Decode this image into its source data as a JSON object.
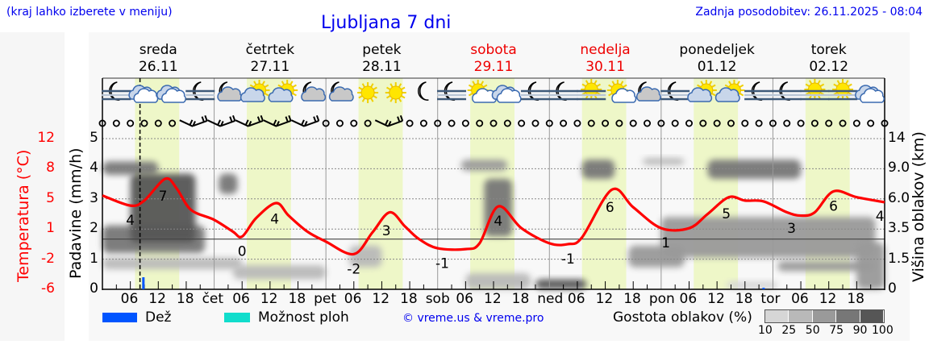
{
  "header": {
    "note": "(kraj lahko izberete v meniju)",
    "title": "Ljubljana 7 dni",
    "updated": "Zadnja posodobitev: 26.11.2025 - 08:04"
  },
  "days": [
    {
      "name": "sreda",
      "date": "26.11",
      "weekend": false
    },
    {
      "name": "četrtek",
      "date": "27.11",
      "weekend": false
    },
    {
      "name": "petek",
      "date": "28.11",
      "weekend": false
    },
    {
      "name": "sobota",
      "date": "29.11",
      "weekend": true
    },
    {
      "name": "nedelja",
      "date": "30.11",
      "weekend": true
    },
    {
      "name": "ponedeljek",
      "date": "01.12",
      "weekend": false
    },
    {
      "name": "torek",
      "date": "02.12",
      "weekend": false
    }
  ],
  "colors": {
    "title": "#0000ee",
    "weekend": "#ee0000",
    "temperature": "#ff0000",
    "rain": "#0055ff",
    "showers": "#11ddcc",
    "daylight": "#eef7c8"
  },
  "legend": {
    "rain": "Dež",
    "showers": "Možnost ploh",
    "copyright": "© vreme.us & vreme.pro",
    "cloud_density": "Gostota oblakov (%)",
    "density_levels": [
      "10",
      "25",
      "50",
      "75",
      "90",
      "100"
    ],
    "density_colors": [
      "#d6d6d6",
      "#b9b9b9",
      "#9a9a9a",
      "#777777",
      "#565656"
    ]
  },
  "chart_data": {
    "type": "meteogram",
    "now_hour": 8.07,
    "x_ticks": {
      "hours": [
        "06",
        "12",
        "18"
      ],
      "day_abbr": [
        "čet",
        "pet",
        "sob",
        "ned",
        "pon",
        "tor"
      ]
    },
    "left_axis": {
      "label": "Padavine (mm/h)",
      "ticks": [
        "0",
        "1",
        "2",
        "3",
        "4",
        "5"
      ],
      "ylim": [
        0,
        5
      ]
    },
    "temp_axis": {
      "label": "Temperatura (°C)",
      "ticks": [
        "-6",
        "-2",
        "1",
        "5",
        "8",
        "12"
      ],
      "ylim": [
        -6,
        12
      ]
    },
    "right_axis": {
      "label": "Višina oblakov (km)",
      "ticks": [
        "0",
        "1.5",
        "3.5",
        "6.0",
        "9.0",
        "14"
      ]
    },
    "daylight_hours": [
      7,
      16.5
    ],
    "temperature": [
      [
        0,
        5.2
      ],
      [
        6,
        4.0
      ],
      [
        9,
        4.6
      ],
      [
        13.5,
        7.2
      ],
      [
        16,
        6.0
      ],
      [
        19,
        3.5
      ],
      [
        24,
        2.3
      ],
      [
        28,
        0.9
      ],
      [
        30,
        0.3
      ],
      [
        33,
        2.5
      ],
      [
        37.3,
        4.3
      ],
      [
        40,
        2.8
      ],
      [
        44,
        0.9
      ],
      [
        48,
        -0.3
      ],
      [
        54,
        -1.8
      ],
      [
        58,
        0.8
      ],
      [
        61.7,
        3.2
      ],
      [
        65,
        1.5
      ],
      [
        68,
        0.0
      ],
      [
        72,
        -1.1
      ],
      [
        78,
        -1.2
      ],
      [
        81,
        -0.5
      ],
      [
        85,
        3.9
      ],
      [
        90,
        1.3
      ],
      [
        96,
        -0.5
      ],
      [
        100,
        -0.6
      ],
      [
        103,
        0.2
      ],
      [
        109.4,
        5.9
      ],
      [
        114,
        3.8
      ],
      [
        120,
        1.3
      ],
      [
        126,
        1.3
      ],
      [
        130,
        3.0
      ],
      [
        134.5,
        5.0
      ],
      [
        138,
        4.6
      ],
      [
        142,
        4.5
      ],
      [
        147,
        3.2
      ],
      [
        150,
        2.8
      ],
      [
        153,
        3.2
      ],
      [
        157,
        5.7
      ],
      [
        162,
        5.0
      ],
      [
        168,
        4.4
      ]
    ],
    "temperature_labels": [
      {
        "hour": 6,
        "value": "4",
        "pos": "below"
      },
      {
        "hour": 13,
        "value": "7",
        "pos": "below"
      },
      {
        "hour": 30,
        "value": "0",
        "pos": "below"
      },
      {
        "hour": 37,
        "value": "4",
        "pos": "below"
      },
      {
        "hour": 54,
        "value": "-2",
        "pos": "below"
      },
      {
        "hour": 61,
        "value": "3",
        "pos": "below"
      },
      {
        "hour": 73,
        "value": "-1",
        "pos": "below"
      },
      {
        "hour": 85,
        "value": "4",
        "pos": "below"
      },
      {
        "hour": 100,
        "value": "-1",
        "pos": "below"
      },
      {
        "hour": 109,
        "value": "6",
        "pos": "below"
      },
      {
        "hour": 121,
        "value": "1",
        "pos": "below"
      },
      {
        "hour": 134,
        "value": "5",
        "pos": "below"
      },
      {
        "hour": 148,
        "value": "3",
        "pos": "below"
      },
      {
        "hour": 157,
        "value": "6",
        "pos": "below"
      },
      {
        "hour": 167,
        "value": "4",
        "pos": "below"
      }
    ],
    "precipitation": [
      {
        "hour": 8.8,
        "mm_h": 0.4,
        "type": "rain"
      },
      {
        "hour": 142,
        "mm_h": 0.05,
        "type": "rain"
      }
    ],
    "clouds": [
      {
        "from": 0,
        "to": 12,
        "base_km": 8.4,
        "top_km": 10.2,
        "density": 75
      },
      {
        "from": 0,
        "to": 22,
        "base_km": 1.9,
        "top_km": 3.8,
        "density": 75
      },
      {
        "from": 6,
        "to": 20,
        "base_km": 2.6,
        "top_km": 8.5,
        "density": 90
      },
      {
        "from": 25,
        "to": 29,
        "base_km": 6.5,
        "top_km": 8.5,
        "density": 75
      },
      {
        "from": 0,
        "to": 30,
        "base_km": 1.0,
        "top_km": 1.6,
        "density": 25
      },
      {
        "from": 28,
        "to": 48,
        "base_km": 0.5,
        "top_km": 1.2,
        "density": 25
      },
      {
        "from": 53,
        "to": 60,
        "base_km": 1.1,
        "top_km": 2.4,
        "density": 25
      },
      {
        "from": 78,
        "to": 92,
        "base_km": 0,
        "top_km": 0.8,
        "density": 25
      },
      {
        "from": 82,
        "to": 88,
        "base_km": 3.0,
        "top_km": 8.0,
        "density": 75
      },
      {
        "from": 77,
        "to": 87,
        "base_km": 8.8,
        "top_km": 10.5,
        "density": 50
      },
      {
        "from": 93,
        "to": 104,
        "base_km": 0,
        "top_km": 0.5,
        "density": 90
      },
      {
        "from": 103,
        "to": 110,
        "base_km": 8.0,
        "top_km": 10.5,
        "density": 75
      },
      {
        "from": 116,
        "to": 125,
        "base_km": 9.6,
        "top_km": 10.8,
        "density": 25
      },
      {
        "from": 113,
        "to": 125,
        "base_km": 1.1,
        "top_km": 2.4,
        "density": 50
      },
      {
        "from": 120,
        "to": 166,
        "base_km": 1.6,
        "top_km": 4.5,
        "density": 50
      },
      {
        "from": 130,
        "to": 150,
        "base_km": 8.0,
        "top_km": 10.5,
        "density": 75
      },
      {
        "from": 145,
        "to": 166,
        "base_km": 0.9,
        "top_km": 1.4,
        "density": 50
      },
      {
        "from": 162,
        "to": 168,
        "base_km": 0,
        "top_km": 2.6,
        "density": 50
      },
      {
        "from": 134,
        "to": 145,
        "base_km": 0,
        "top_km": 0.4,
        "density": 10
      }
    ],
    "weather_icons": [
      "moon-fog",
      "cloud-overcast",
      "cloud-overcast",
      "moon-fog",
      "moon-cloud",
      "sun-cloud",
      "sun-cloud",
      "moon-cloud",
      "moon-cloud",
      "sun",
      "sun",
      "moon",
      "moon-fog",
      "sun-small-cloud",
      "cloud-overcast",
      "moon-fog",
      "moon-fog",
      "sun-fog",
      "sun-small-cloud",
      "moon-cloud",
      "moon-fog",
      "sun-cloud",
      "sun-cloud",
      "moon-fog",
      "moon-fog",
      "sun-fog",
      "sun-fog",
      "cloud-overcast"
    ],
    "wind_barb_hours": [
      18,
      21,
      24,
      27,
      30,
      33,
      36,
      39,
      42,
      45,
      60,
      63
    ]
  }
}
